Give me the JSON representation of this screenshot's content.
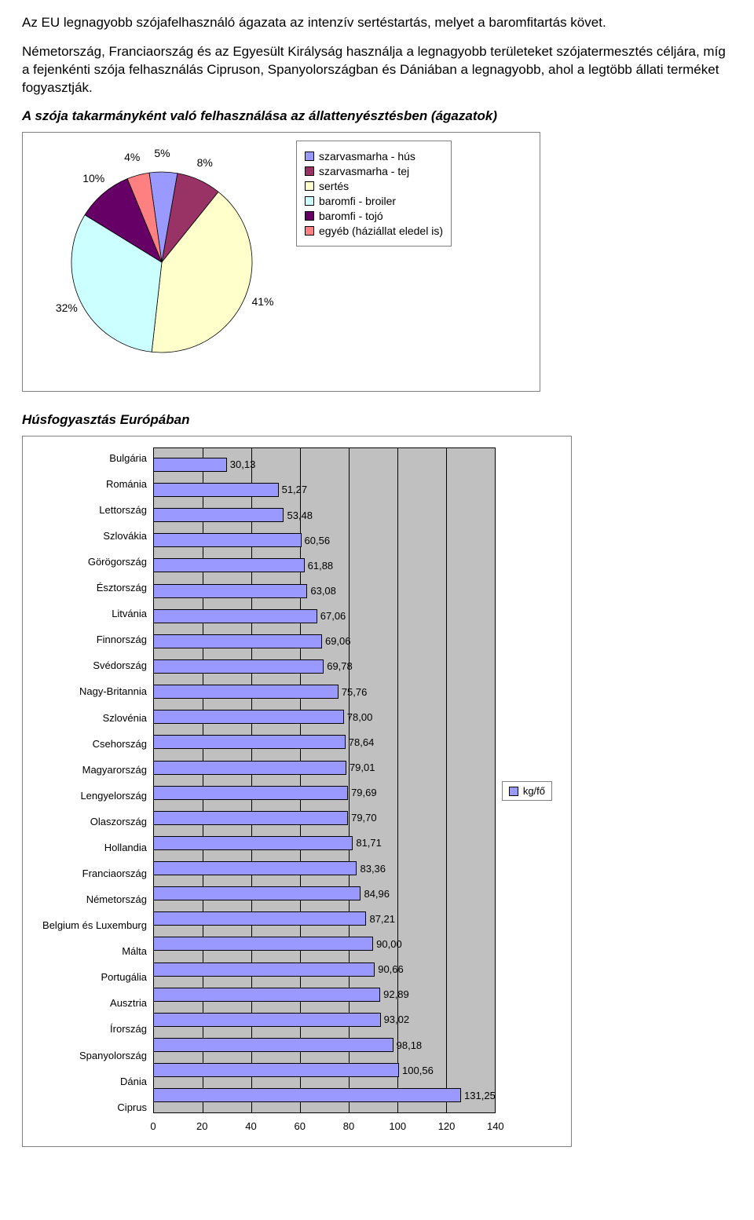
{
  "intro": {
    "p1": "Az EU legnagyobb szójafelhasználó ágazata az intenzív sertéstartás, melyet a baromfitartás követ.",
    "p2": "Németország, Franciaország és az Egyesült Királyság használja a legnagyobb területeket szójatermesztés céljára, míg a fejenkénti szója felhasználás Cipruson, Spanyolországban és Dániában a legnagyobb, ahol a legtöbb állati terméket fogyasztják."
  },
  "pie": {
    "title": "A szója takarmányként való felhasználása az állattenyésztésben (ágazatok)",
    "type": "pie",
    "background_color": "#ffffff",
    "border_color": "#808080",
    "slices": [
      {
        "label": "szarvasmarha - hús",
        "value": 5,
        "color": "#9999ff",
        "label_text": "5%"
      },
      {
        "label": "szarvasmarha - tej",
        "value": 8,
        "color": "#993366",
        "label_text": "8%"
      },
      {
        "label": "sertés",
        "value": 41,
        "color": "#ffffcc",
        "label_text": "41%"
      },
      {
        "label": "baromfi - broiler",
        "value": 32,
        "color": "#ccffff",
        "label_text": "32%"
      },
      {
        "label": "baromfi - tojó",
        "value": 10,
        "color": "#660066",
        "label_text": "10%"
      },
      {
        "label": "egyéb (háziállat eledel is)",
        "value": 4,
        "color": "#ff8080",
        "label_text": "4%"
      }
    ],
    "label_fontsize": 14
  },
  "bar": {
    "title": "Húsfogyasztás Európában",
    "type": "bar-horizontal",
    "xlim": [
      0,
      140
    ],
    "xtick_step": 20,
    "xticks": [
      0,
      20,
      40,
      60,
      80,
      100,
      120,
      140
    ],
    "grid_background": "#c0c0c0",
    "grid_line_color": "#000000",
    "bar_color": "#9999ff",
    "bar_border": "#000000",
    "legend_label": "kg/fő",
    "label_fontsize": 13,
    "items": [
      {
        "label": "Bulgária",
        "value": 30.13,
        "value_text": "30,13"
      },
      {
        "label": "Románia",
        "value": 51.27,
        "value_text": "51,27"
      },
      {
        "label": "Lettország",
        "value": 53.48,
        "value_text": "53,48"
      },
      {
        "label": "Szlovákia",
        "value": 60.56,
        "value_text": "60,56"
      },
      {
        "label": "Görögország",
        "value": 61.88,
        "value_text": "61,88"
      },
      {
        "label": "Észtország",
        "value": 63.08,
        "value_text": "63,08"
      },
      {
        "label": "Litvánia",
        "value": 67.06,
        "value_text": "67,06"
      },
      {
        "label": "Finnország",
        "value": 69.06,
        "value_text": "69,06"
      },
      {
        "label": "Svédország",
        "value": 69.78,
        "value_text": "69,78"
      },
      {
        "label": "Nagy-Britannia",
        "value": 75.76,
        "value_text": "75,76"
      },
      {
        "label": "Szlovénia",
        "value": 78.0,
        "value_text": "78,00"
      },
      {
        "label": "Csehország",
        "value": 78.64,
        "value_text": "78,64"
      },
      {
        "label": "Magyarország",
        "value": 79.01,
        "value_text": "79,01"
      },
      {
        "label": "Lengyelország",
        "value": 79.69,
        "value_text": "79,69"
      },
      {
        "label": "Olaszország",
        "value": 79.7,
        "value_text": "79,70"
      },
      {
        "label": "Hollandia",
        "value": 81.71,
        "value_text": "81,71"
      },
      {
        "label": "Franciaország",
        "value": 83.36,
        "value_text": "83,36"
      },
      {
        "label": "Németország",
        "value": 84.96,
        "value_text": "84,96"
      },
      {
        "label": "Belgium és Luxemburg",
        "value": 87.21,
        "value_text": "87,21"
      },
      {
        "label": "Málta",
        "value": 90.0,
        "value_text": "90,00"
      },
      {
        "label": "Portugália",
        "value": 90.66,
        "value_text": "90,66"
      },
      {
        "label": "Ausztria",
        "value": 92.89,
        "value_text": "92,89"
      },
      {
        "label": "Írország",
        "value": 93.02,
        "value_text": "93,02"
      },
      {
        "label": "Spanyolország",
        "value": 98.18,
        "value_text": "98,18"
      },
      {
        "label": "Dánia",
        "value": 100.56,
        "value_text": "100,56"
      },
      {
        "label": "Ciprus",
        "value": 131.25,
        "value_text": "131,25"
      }
    ]
  }
}
